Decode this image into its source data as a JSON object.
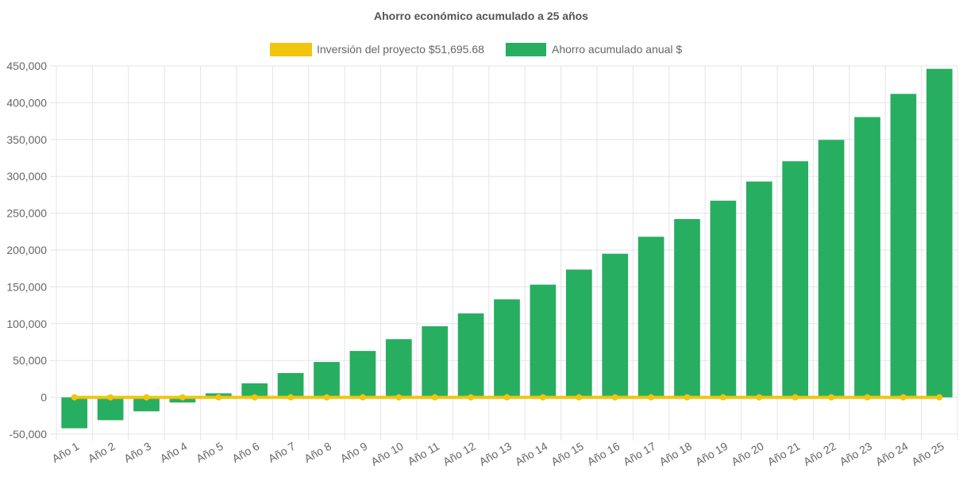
{
  "chart_data": {
    "type": "bar",
    "title": "Ahorro económico acumulado a 25 años",
    "categories": [
      "Año 1",
      "Año 2",
      "Año 3",
      "Año 4",
      "Año 5",
      "Año 6",
      "Año 7",
      "Año 8",
      "Año 9",
      "Año 10",
      "Año 11",
      "Año 12",
      "Año 13",
      "Año 14",
      "Año 15",
      "Año 16",
      "Año 17",
      "Año 18",
      "Año 19",
      "Año 20",
      "Año 21",
      "Año 22",
      "Año 23",
      "Año 24",
      "Año 25"
    ],
    "series": [
      {
        "name": "Inversión del proyecto $51,695.68",
        "type": "line",
        "color": "#f1c40f",
        "values": [
          0,
          0,
          0,
          0,
          0,
          0,
          0,
          0,
          0,
          0,
          0,
          0,
          0,
          0,
          0,
          0,
          0,
          0,
          0,
          0,
          0,
          0,
          0,
          0,
          0
        ]
      },
      {
        "name": "Ahorro acumulado anual $",
        "type": "bar",
        "color": "#27ae60",
        "values": [
          -42000,
          -31000,
          -19000,
          -7000,
          5500,
          19000,
          33000,
          48000,
          63000,
          79000,
          96500,
          114000,
          133000,
          153000,
          173500,
          195000,
          218000,
          242000,
          267000,
          293000,
          320500,
          349500,
          380500,
          412000,
          446000
        ]
      }
    ],
    "ylim": [
      -50000,
      450000
    ],
    "yticks": [
      "450,000",
      "400,000",
      "350,000",
      "300,000",
      "250,000",
      "200,000",
      "150,000",
      "100,000",
      "50,000",
      "0",
      "-50,000"
    ],
    "ytick_values": [
      450000,
      400000,
      350000,
      300000,
      250000,
      200000,
      150000,
      100000,
      50000,
      0,
      -50000
    ],
    "grid": true,
    "legend_position": "top-center"
  }
}
